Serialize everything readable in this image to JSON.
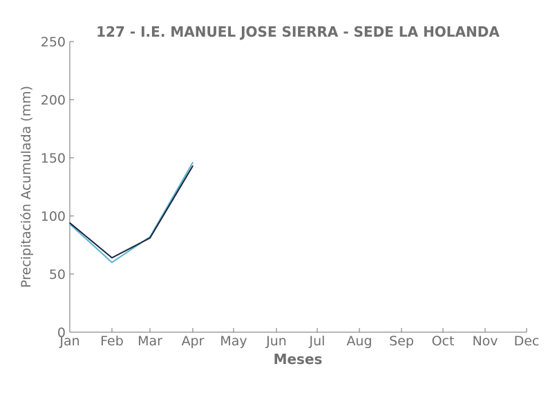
{
  "chart_data": {
    "type": "line",
    "title": "127 - I.E. MANUEL JOSE SIERRA - SEDE LA HOLANDA",
    "xlabel": "Meses",
    "ylabel": "Precipitación Acumulada (mm)",
    "categories": [
      "Jan",
      "Feb",
      "Mar",
      "Apr",
      "May",
      "Jun",
      "Jul",
      "Aug",
      "Sep",
      "Oct",
      "Nov",
      "Dec"
    ],
    "ylim": [
      0,
      250
    ],
    "yticks": [
      0,
      50,
      100,
      150,
      200,
      250
    ],
    "grid": false,
    "series": [
      {
        "color": "#5ab4cf",
        "values": [
          93,
          60,
          82,
          146,
          null,
          null,
          null,
          null,
          null,
          null,
          null,
          null
        ]
      },
      {
        "color": "#1a2540",
        "values": [
          94,
          64,
          81,
          143,
          null,
          null,
          null,
          null,
          null,
          null,
          null,
          null
        ]
      }
    ]
  }
}
